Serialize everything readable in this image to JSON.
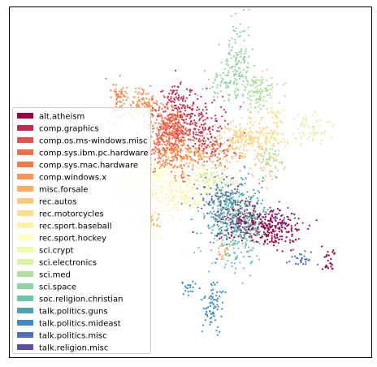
{
  "chart_data": {
    "type": "scatter",
    "title": "",
    "xlabel": "",
    "ylabel": "",
    "grid": false,
    "axes_ticks": false,
    "legend_position": "lower-left",
    "series": [
      {
        "name": "alt.atheism",
        "color": "#9e0142",
        "clusters": [
          [
            0.71,
            0.63,
            0.05,
            0.028,
            260
          ],
          [
            0.64,
            0.6,
            0.03,
            0.03,
            90
          ],
          [
            0.88,
            0.72,
            0.01,
            0.02,
            25
          ]
        ]
      },
      {
        "name": "comp.graphics",
        "color": "#c32a4b",
        "clusters": [
          [
            0.5,
            0.32,
            0.05,
            0.03,
            200
          ],
          [
            0.47,
            0.26,
            0.02,
            0.02,
            60
          ],
          [
            0.53,
            0.38,
            0.03,
            0.02,
            60
          ]
        ]
      },
      {
        "name": "comp.os.ms-windows.misc",
        "color": "#e1524a",
        "clusters": [
          [
            0.45,
            0.36,
            0.03,
            0.03,
            160
          ],
          [
            0.57,
            0.42,
            0.03,
            0.02,
            60
          ]
        ]
      },
      {
        "name": "comp.sys.ibm.pc.hardware",
        "color": "#f1704a",
        "clusters": [
          [
            0.42,
            0.41,
            0.035,
            0.03,
            150
          ],
          [
            0.48,
            0.45,
            0.02,
            0.03,
            50
          ]
        ]
      },
      {
        "name": "comp.sys.mac.hardware",
        "color": "#f67a49",
        "clusters": [
          [
            0.44,
            0.34,
            0.03,
            0.025,
            130
          ],
          [
            0.3,
            0.29,
            0.01,
            0.04,
            50
          ]
        ]
      },
      {
        "name": "comp.windows.x",
        "color": "#f99455",
        "clusters": [
          [
            0.37,
            0.28,
            0.025,
            0.02,
            120
          ],
          [
            0.31,
            0.25,
            0.01,
            0.015,
            30
          ]
        ]
      },
      {
        "name": "misc.forsale",
        "color": "#fdad60",
        "clusters": [
          [
            0.5,
            0.42,
            0.05,
            0.025,
            150
          ],
          [
            0.59,
            0.7,
            0.01,
            0.015,
            20
          ],
          [
            0.4,
            0.6,
            0.01,
            0.015,
            20
          ]
        ]
      },
      {
        "name": "rec.autos",
        "color": "#fdc877",
        "clusters": [
          [
            0.64,
            0.39,
            0.04,
            0.03,
            140
          ],
          [
            0.71,
            0.46,
            0.02,
            0.02,
            40
          ]
        ]
      },
      {
        "name": "rec.motorcycles",
        "color": "#fedd8d",
        "clusters": [
          [
            0.69,
            0.37,
            0.04,
            0.02,
            130
          ],
          [
            0.74,
            0.32,
            0.01,
            0.02,
            25
          ]
        ]
      },
      {
        "name": "rec.sport.baseball",
        "color": "#fff1a8",
        "clusters": [
          [
            0.48,
            0.53,
            0.06,
            0.03,
            220
          ]
        ]
      },
      {
        "name": "rec.sport.hockey",
        "color": "#ffffbf",
        "clusters": [
          [
            0.41,
            0.47,
            0.03,
            0.02,
            80
          ],
          [
            0.33,
            0.45,
            0.02,
            0.02,
            40
          ]
        ]
      },
      {
        "name": "sci.crypt",
        "color": "#f2faac",
        "clusters": [
          [
            0.33,
            0.52,
            0.04,
            0.04,
            130
          ],
          [
            0.39,
            0.63,
            0.015,
            0.015,
            25
          ]
        ]
      },
      {
        "name": "sci.electronics",
        "color": "#dcf1a7",
        "clusters": [
          [
            0.56,
            0.49,
            0.03,
            0.02,
            90
          ],
          [
            0.83,
            0.35,
            0.03,
            0.02,
            60
          ]
        ]
      },
      {
        "name": "sci.med",
        "color": "#b1df9e",
        "clusters": [
          [
            0.69,
            0.24,
            0.03,
            0.03,
            120
          ],
          [
            0.72,
            0.43,
            0.02,
            0.015,
            40
          ]
        ]
      },
      {
        "name": "sci.space",
        "color": "#8fd2a4",
        "clusters": [
          [
            0.63,
            0.16,
            0.02,
            0.05,
            140
          ],
          [
            0.58,
            0.22,
            0.02,
            0.02,
            40
          ]
        ]
      },
      {
        "name": "soc.religion.christian",
        "color": "#6bc4a5",
        "clusters": [
          [
            0.63,
            0.64,
            0.04,
            0.05,
            200
          ],
          [
            0.59,
            0.56,
            0.02,
            0.02,
            50
          ]
        ]
      },
      {
        "name": "talk.politics.guns",
        "color": "#4ba4b0",
        "clusters": [
          [
            0.61,
            0.6,
            0.04,
            0.04,
            150
          ],
          [
            0.66,
            0.55,
            0.03,
            0.03,
            60
          ]
        ]
      },
      {
        "name": "talk.politics.mideast",
        "color": "#3f8cbe",
        "clusters": [
          [
            0.56,
            0.86,
            0.015,
            0.04,
            80
          ],
          [
            0.5,
            0.8,
            0.01,
            0.015,
            20
          ]
        ]
      },
      {
        "name": "talk.politics.misc",
        "color": "#4f70b2",
        "clusters": [
          [
            0.81,
            0.72,
            0.02,
            0.01,
            30
          ],
          [
            0.58,
            0.54,
            0.03,
            0.03,
            70
          ]
        ]
      },
      {
        "name": "talk.religion.misc",
        "color": "#5e4fa2",
        "clusters": [
          [
            0.64,
            0.62,
            0.03,
            0.03,
            50
          ],
          [
            0.75,
            0.61,
            0.02,
            0.02,
            30
          ]
        ]
      }
    ]
  }
}
